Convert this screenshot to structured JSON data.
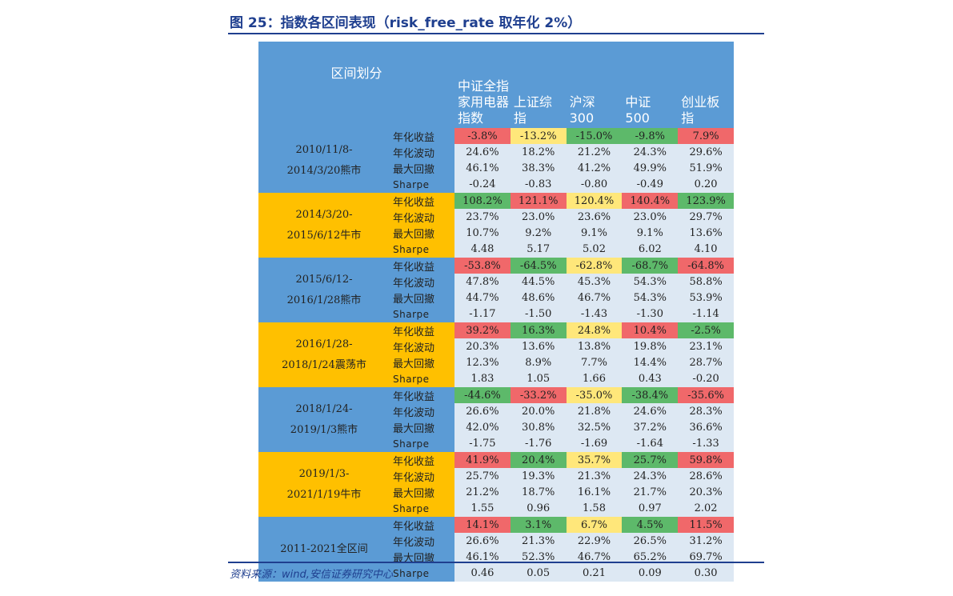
{
  "title": "图 25：指数各区间表现（risk_free_rate 取年化 2%）",
  "source": "资料来源：wind,安信证券研究中心",
  "header": {
    "period_label": "区间划分",
    "columns": [
      "中证全指\n家用电器\n指数",
      "上证综\n指",
      "沪深\n300",
      "中证\n500",
      "创业板\n指"
    ]
  },
  "metrics": [
    "年化收益",
    "年化波动",
    "最大回撤",
    "Sharpe"
  ],
  "colors": {
    "blue": "#5b9bd5",
    "gold": "#ffc000",
    "light": "#dde8f3",
    "red": "#f0686a",
    "yellow": "#ffe77a",
    "green": "#5db96a"
  },
  "periods": [
    {
      "label": "2010/11/8-\n2014/3/20熊市",
      "band": "blue",
      "rows": [
        [
          "-3.8%",
          "-13.2%",
          "-15.0%",
          "-9.8%",
          "7.9%"
        ],
        [
          "24.6%",
          "18.2%",
          "21.2%",
          "24.3%",
          "29.6%"
        ],
        [
          "46.1%",
          "38.3%",
          "41.2%",
          "49.9%",
          "51.9%"
        ],
        [
          "-0.24",
          "-0.83",
          "-0.80",
          "-0.49",
          "0.20"
        ]
      ],
      "return_colors": [
        "red",
        "yellow",
        "green",
        "green",
        "red"
      ]
    },
    {
      "label": "2014/3/20-\n2015/6/12牛市",
      "band": "gold",
      "rows": [
        [
          "108.2%",
          "121.1%",
          "120.4%",
          "140.4%",
          "123.9%"
        ],
        [
          "23.7%",
          "23.0%",
          "23.6%",
          "23.0%",
          "29.7%"
        ],
        [
          "10.7%",
          "9.2%",
          "9.1%",
          "9.1%",
          "13.6%"
        ],
        [
          "4.48",
          "5.17",
          "5.02",
          "6.02",
          "4.10"
        ]
      ],
      "return_colors": [
        "green",
        "red",
        "yellow",
        "red",
        "green"
      ]
    },
    {
      "label": "2015/6/12-\n2016/1/28熊市",
      "band": "blue",
      "rows": [
        [
          "-53.8%",
          "-64.5%",
          "-62.8%",
          "-68.7%",
          "-64.8%"
        ],
        [
          "47.8%",
          "44.5%",
          "45.3%",
          "54.3%",
          "58.8%"
        ],
        [
          "44.7%",
          "48.6%",
          "46.7%",
          "54.3%",
          "53.9%"
        ],
        [
          "-1.17",
          "-1.50",
          "-1.43",
          "-1.30",
          "-1.14"
        ]
      ],
      "return_colors": [
        "red",
        "green",
        "yellow",
        "green",
        "red"
      ]
    },
    {
      "label": "2016/1/28-\n2018/1/24震荡市",
      "band": "gold",
      "rows": [
        [
          "39.2%",
          "16.3%",
          "24.8%",
          "10.4%",
          "-2.5%"
        ],
        [
          "20.3%",
          "13.6%",
          "13.8%",
          "19.8%",
          "23.1%"
        ],
        [
          "12.3%",
          "8.9%",
          "7.7%",
          "14.4%",
          "28.7%"
        ],
        [
          "1.83",
          "1.05",
          "1.66",
          "0.43",
          "-0.20"
        ]
      ],
      "return_colors": [
        "red",
        "green",
        "yellow",
        "red",
        "green"
      ]
    },
    {
      "label": "2018/1/24-\n2019/1/3熊市",
      "band": "blue",
      "rows": [
        [
          "-44.6%",
          "-33.2%",
          "-35.0%",
          "-38.4%",
          "-35.6%"
        ],
        [
          "26.6%",
          "20.0%",
          "21.8%",
          "24.6%",
          "28.3%"
        ],
        [
          "42.0%",
          "30.8%",
          "32.5%",
          "37.2%",
          "36.6%"
        ],
        [
          "-1.75",
          "-1.76",
          "-1.69",
          "-1.64",
          "-1.33"
        ]
      ],
      "return_colors": [
        "green",
        "red",
        "yellow",
        "green",
        "red"
      ]
    },
    {
      "label": "2019/1/3-\n2021/1/19牛市",
      "band": "gold",
      "rows": [
        [
          "41.9%",
          "20.4%",
          "35.7%",
          "25.7%",
          "59.8%"
        ],
        [
          "25.7%",
          "19.3%",
          "21.3%",
          "24.3%",
          "28.6%"
        ],
        [
          "21.2%",
          "18.7%",
          "16.1%",
          "21.7%",
          "20.3%"
        ],
        [
          "1.55",
          "0.96",
          "1.58",
          "0.97",
          "2.02"
        ]
      ],
      "return_colors": [
        "red",
        "green",
        "yellow",
        "green",
        "red"
      ]
    },
    {
      "label": "2011-2021全区间",
      "band": "blue",
      "rows": [
        [
          "14.1%",
          "3.1%",
          "6.7%",
          "4.5%",
          "11.5%"
        ],
        [
          "26.6%",
          "21.3%",
          "22.9%",
          "26.5%",
          "31.2%"
        ],
        [
          "46.1%",
          "52.3%",
          "46.7%",
          "65.2%",
          "69.7%"
        ],
        [
          "0.46",
          "0.05",
          "0.21",
          "0.09",
          "0.30"
        ]
      ],
      "return_colors": [
        "red",
        "green",
        "yellow",
        "green",
        "red"
      ]
    }
  ]
}
